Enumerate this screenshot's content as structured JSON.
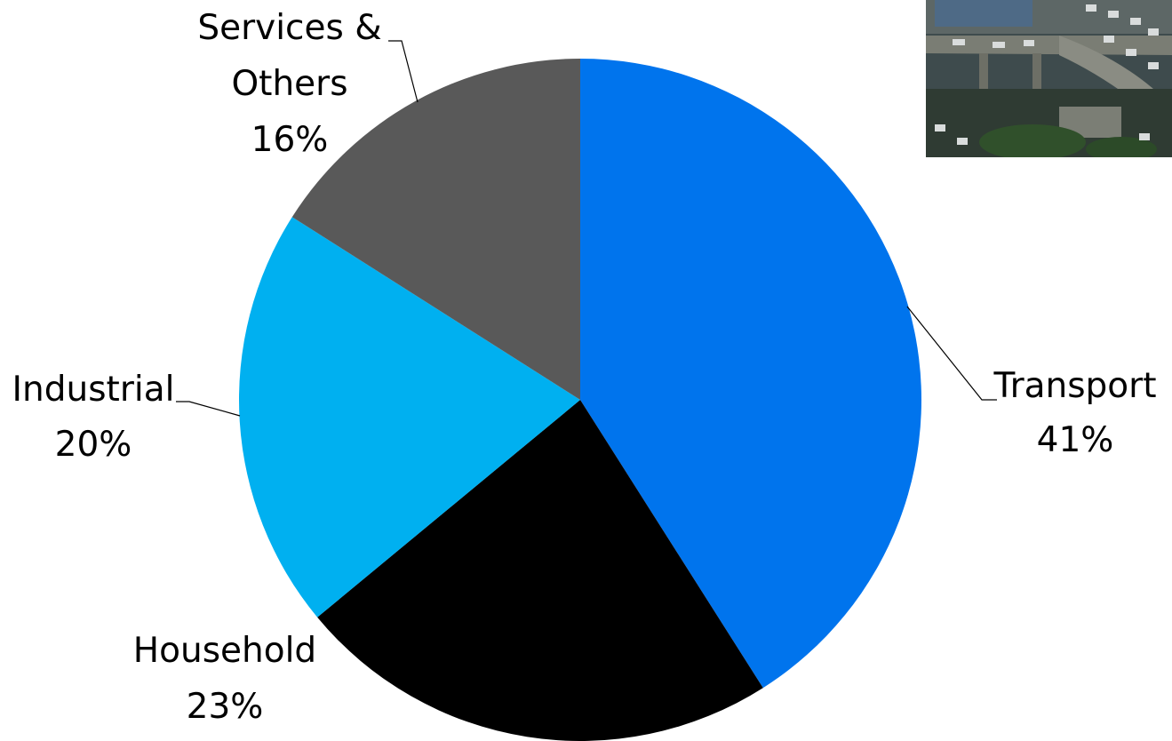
{
  "chart_data": {
    "type": "pie",
    "title": "",
    "start_angle_deg": 0,
    "direction": "clockwise",
    "slices": [
      {
        "label_lines": [
          "Transport"
        ],
        "value": 41,
        "value_label": "41%",
        "color": "#0074ED"
      },
      {
        "label_lines": [
          "Household"
        ],
        "value": 23,
        "value_label": "23%",
        "color": "#000000"
      },
      {
        "label_lines": [
          "Industrial"
        ],
        "value": 20,
        "value_label": "20%",
        "color": "#00B0F0"
      },
      {
        "label_lines": [
          "Services &",
          "Others"
        ],
        "value": 16,
        "value_label": "16%",
        "color": "#595959"
      }
    ],
    "legend": "none",
    "data_labels": "outside with leader lines"
  },
  "photo": {
    "subject": "elevated highway with congested traffic",
    "colors": {
      "sky": "#3a4a4e",
      "road": "#6b6f68",
      "trees": "#2f4a2a"
    }
  }
}
